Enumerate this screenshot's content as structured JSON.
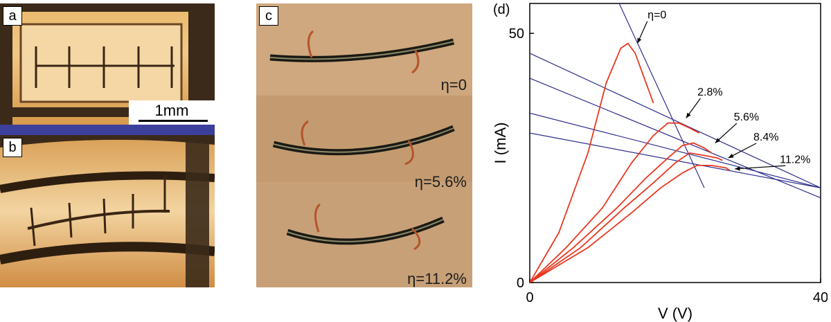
{
  "panels": {
    "a": {
      "letter": "a",
      "scale_label": "1mm"
    },
    "b": {
      "letter": "b"
    },
    "c": {
      "letter": "c",
      "eta_labels": [
        "η=0",
        "η=5.6%",
        "η=11.2%"
      ]
    },
    "d": {
      "letter": "(d)"
    }
  },
  "colors": {
    "curve": "#e8371e",
    "lines": "#2e2f8c",
    "bar": "#3d3f9c"
  },
  "chart_data": {
    "type": "line",
    "title": "",
    "xlabel": "V  (V)",
    "ylabel": "I (mA)",
    "xlim": [
      0,
      40
    ],
    "ylim": [
      0,
      56
    ],
    "x_ticks": [
      "0",
      "40"
    ],
    "y_ticks": [
      "0",
      "50"
    ],
    "legend": "none",
    "series": [
      {
        "name": "η=0",
        "points": [
          [
            0,
            0
          ],
          [
            4,
            10
          ],
          [
            8,
            26
          ],
          [
            10.5,
            40
          ],
          [
            12.5,
            47
          ],
          [
            13.5,
            48
          ],
          [
            14.5,
            46
          ],
          [
            15.5,
            42
          ],
          [
            16.5,
            38
          ],
          [
            17,
            36
          ]
        ]
      },
      {
        "name": "2.8%",
        "points": [
          [
            0,
            0
          ],
          [
            5,
            7
          ],
          [
            10,
            15
          ],
          [
            14,
            24
          ],
          [
            17,
            29.5
          ],
          [
            19,
            32
          ],
          [
            20.5,
            32
          ],
          [
            22,
            31
          ],
          [
            23.3,
            30
          ]
        ]
      },
      {
        "name": "5.6%",
        "points": [
          [
            0,
            0
          ],
          [
            6,
            7
          ],
          [
            12,
            15
          ],
          [
            16,
            21
          ],
          [
            19,
            25
          ],
          [
            21,
            27.5
          ],
          [
            22.5,
            28
          ],
          [
            24,
            27
          ],
          [
            25,
            26
          ]
        ]
      },
      {
        "name": "8.4%",
        "points": [
          [
            0,
            0
          ],
          [
            7,
            7
          ],
          [
            13,
            15
          ],
          [
            17,
            20
          ],
          [
            20,
            24
          ],
          [
            22,
            26
          ],
          [
            24,
            25.5
          ],
          [
            25.8,
            25
          ],
          [
            26.5,
            24.5
          ]
        ]
      },
      {
        "name": "11.2%",
        "points": [
          [
            0,
            0
          ],
          [
            8,
            7
          ],
          [
            14,
            14
          ],
          [
            18,
            19
          ],
          [
            21,
            22
          ],
          [
            23,
            23.5
          ],
          [
            25,
            23.5
          ],
          [
            27,
            23
          ],
          [
            27.5,
            22.5
          ]
        ]
      }
    ],
    "load_lines": [
      {
        "points": [
          [
            12.3,
            56
          ],
          [
            24,
            19
          ]
        ]
      },
      {
        "points": [
          [
            0,
            46
          ],
          [
            40,
            19
          ]
        ]
      },
      {
        "points": [
          [
            0,
            41
          ],
          [
            40,
            17
          ]
        ]
      },
      {
        "points": [
          [
            0,
            34
          ],
          [
            40,
            19
          ]
        ]
      },
      {
        "points": [
          [
            0,
            30
          ],
          [
            40,
            19
          ]
        ]
      }
    ],
    "annotations": [
      {
        "text": "η=0",
        "x": 17.5,
        "y": 53,
        "arrow_to": [
          14.8,
          48
        ]
      },
      {
        "text": "2.8%",
        "x": 24.8,
        "y": 37.5,
        "arrow_to": [
          21.5,
          33
        ]
      },
      {
        "text": "5.6%",
        "x": 29.8,
        "y": 32.5,
        "arrow_to": [
          25.5,
          28
        ]
      },
      {
        "text": "8.4%",
        "x": 32.5,
        "y": 28.5,
        "arrow_to": [
          27.3,
          25
        ]
      },
      {
        "text": "11.2%",
        "x": 36.5,
        "y": 24,
        "arrow_to": [
          28.2,
          22.8
        ]
      }
    ]
  }
}
